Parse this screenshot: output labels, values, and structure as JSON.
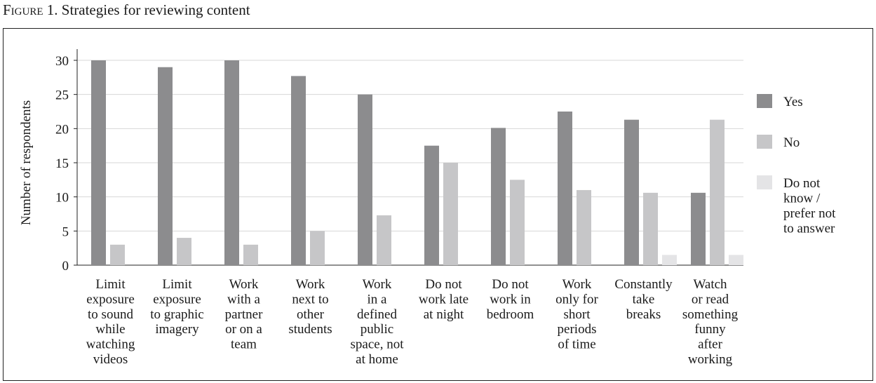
{
  "figure": {
    "label": "Figure 1.",
    "title": "Strategies for reviewing content"
  },
  "chart_data": {
    "type": "bar",
    "title": "Strategies for reviewing content",
    "xlabel": "",
    "ylabel": "Number of respondents",
    "ylim": [
      0,
      30
    ],
    "yticks": [
      0,
      5,
      10,
      15,
      20,
      25,
      30
    ],
    "grid": true,
    "legend_position": "right",
    "categories": [
      [
        "Limit",
        "exposure",
        "to sound",
        "while",
        "watching",
        "videos"
      ],
      [
        "Limit",
        "exposure",
        "to graphic",
        "imagery"
      ],
      [
        "Work",
        "with a",
        "partner",
        "or on a",
        "team"
      ],
      [
        "Work",
        "next to",
        "other",
        "students"
      ],
      [
        "Work",
        "in a",
        "defined",
        "public",
        "space, not",
        "at home"
      ],
      [
        "Do not",
        "work late",
        "at night"
      ],
      [
        "Do not",
        "work in",
        "bedroom"
      ],
      [
        "Work",
        "only for",
        "short",
        "periods",
        "of time"
      ],
      [
        "Constantly",
        "take",
        "breaks"
      ],
      [
        "Watch",
        "or read",
        "something",
        "funny",
        "after",
        "working"
      ]
    ],
    "series": [
      {
        "name": "Yes",
        "color": "#8c8c8e",
        "values": [
          30,
          29,
          30,
          27.7,
          25,
          17.5,
          20.1,
          22.5,
          21.3,
          10.6
        ]
      },
      {
        "name": "No",
        "color": "#c6c6c8",
        "values": [
          3,
          4,
          3,
          5,
          7.3,
          15,
          12.5,
          11,
          10.6,
          21.3
        ]
      },
      {
        "name": "Do not know / prefer not to answer",
        "color": "#e4e4e6",
        "values": [
          0,
          0,
          0,
          0,
          0,
          0,
          0,
          0,
          1.5,
          1.5
        ]
      }
    ],
    "legend_lines": [
      [
        "Yes"
      ],
      [
        "No"
      ],
      [
        "Do not",
        "know /",
        "prefer not",
        "to answer"
      ]
    ]
  }
}
